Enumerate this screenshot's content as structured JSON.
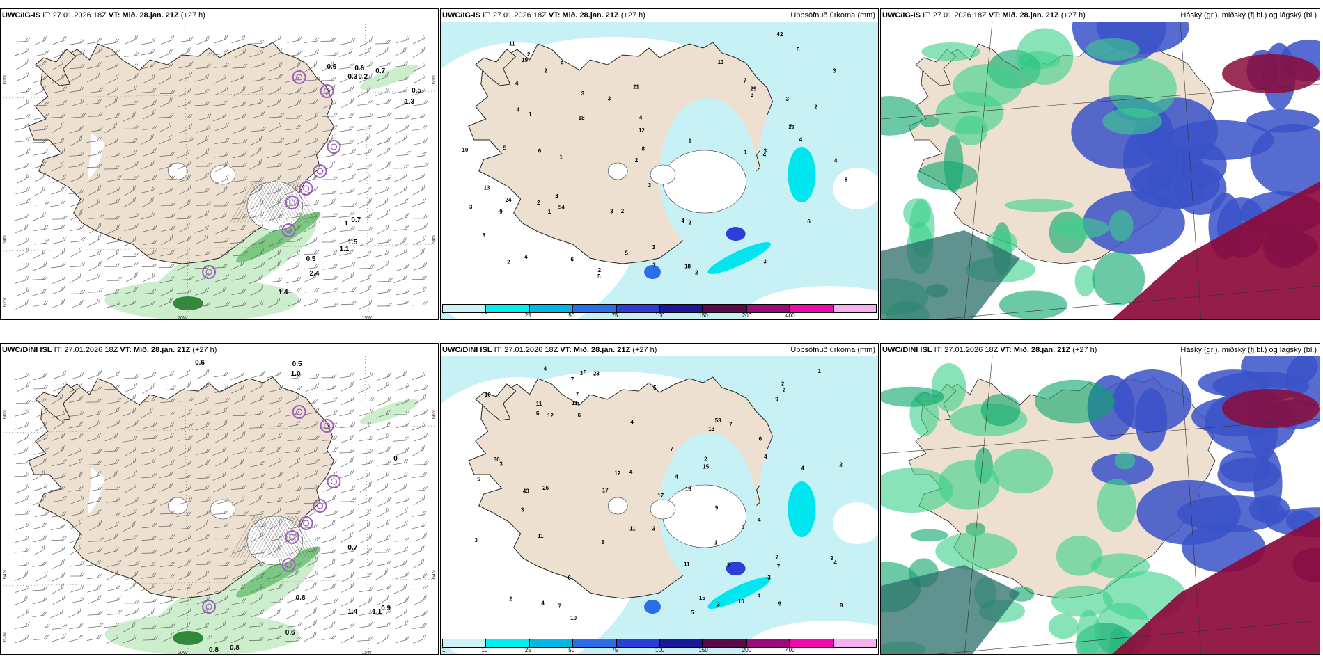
{
  "colors": {
    "land": "#ede0d0",
    "precip_light": "#c8f1f6",
    "precip_cyan": "#00e6ee",
    "green_light": "#cdeecd",
    "green_dark": "#2f8a3a",
    "purple": "#a05cc0",
    "cloud_high": "#0a8a5a",
    "cloud_mid": "#3a52c8",
    "cloud_low": "#8b0a3a"
  },
  "panels": [
    {
      "id": "igis-wind",
      "model": "UWC/IG-IS",
      "it_label": "IT: 27.01.2026 18Z",
      "vt_label": "VT: Mið. 28.jan. 21Z",
      "lead": "(+27 h)",
      "right_title": "",
      "coords": {
        "lat_top": "66N",
        "lat_mid": "64N",
        "lat_bot": "62N",
        "lon_w": "20W",
        "lon_e": "15W",
        "lat_top_r": "66N",
        "lat_mid_r": "64N"
      },
      "values": [
        "0.6",
        "0.6",
        "0.3",
        "0.2",
        "0.7",
        "0.5",
        "1.3",
        "1",
        "0.5",
        "2.4",
        "1.4",
        "1.1",
        "1.5",
        "0.7"
      ]
    },
    {
      "id": "igis-precip",
      "model": "UWC/IG-IS",
      "it_label": "IT: 27.01.2026 18Z",
      "vt_label": "VT: Mið. 28.jan. 21Z",
      "lead": "(+27 h)",
      "right_title": "Uppsöfnuð úrkoma (mm)",
      "values": [
        "1",
        "3",
        "3",
        "3",
        "3",
        "3",
        "2",
        "2",
        "2",
        "4",
        "1",
        "2",
        "2",
        "2",
        "2",
        "3",
        "2",
        "4",
        "5",
        "1",
        "4",
        "4",
        "4",
        "4",
        "3",
        "6",
        "5",
        "1",
        "5",
        "3",
        "7",
        "3",
        "5",
        "7",
        "24",
        "18",
        "19",
        "13",
        "3",
        "8",
        "13",
        "21",
        "8",
        "1",
        "9",
        "8",
        "2",
        "11",
        "10",
        "29",
        "54",
        "4",
        "3",
        "42",
        "4",
        "6",
        "4",
        "12",
        "3",
        "18",
        "9",
        "6",
        "21",
        "2"
      ]
    },
    {
      "id": "igis-cloud",
      "model": "UWC/IG-IS",
      "it_label": "IT: 27.01.2026 18Z",
      "vt_label": "VT: Mið. 28.jan. 21Z",
      "lead": "(+27 h)",
      "right_title": "Háský (gr.), miðský (fj.bl.) og lágský (bl.)"
    },
    {
      "id": "dini-wind",
      "model": "UWC/DINI ISL",
      "it_label": "IT: 27.01.2026 18Z",
      "vt_label": "VT: Mið. 28.jan. 21Z",
      "lead": "(+27 h)",
      "right_title": "",
      "coords": {
        "lat_top": "66N",
        "lat_mid": "64N",
        "lat_bot": "62N",
        "lon_w": "20W",
        "lon_e": "15W",
        "lat_top_r": "66N",
        "lat_mid_r": "64N"
      },
      "values": [
        "0.6",
        "0.5",
        "1.0",
        "0",
        "0.7",
        "0.8",
        "1.4",
        "1.1",
        "0.9",
        "0.6",
        "0.8",
        "0.8"
      ]
    },
    {
      "id": "dini-precip",
      "model": "UWC/DINI ISL",
      "it_label": "IT: 27.01.2026 18Z",
      "vt_label": "VT: Mið. 28.jan. 21Z",
      "lead": "(+27 h)",
      "right_title": "Uppsöfnuð úrkoma (mm)",
      "values": [
        "4",
        "4",
        "4",
        "3",
        "6",
        "1",
        "7",
        "10",
        "2",
        "3",
        "3",
        "3",
        "5",
        "4",
        "4",
        "2",
        "2",
        "3",
        "3",
        "4",
        "4",
        "5",
        "7",
        "7",
        "8",
        "7",
        "6",
        "23",
        "3",
        "7",
        "17",
        "53",
        "30",
        "4",
        "3",
        "8",
        "9",
        "9",
        "6",
        "15",
        "2",
        "12",
        "8",
        "9",
        "5",
        "11",
        "1",
        "12",
        "13",
        "26",
        "15",
        "4",
        "43",
        "2",
        "5",
        "3",
        "10",
        "16",
        "17",
        "6",
        "7",
        "11",
        "11",
        "10",
        "11",
        "9",
        "11",
        "4",
        "2"
      ]
    },
    {
      "id": "dini-cloud",
      "model": "UWC/DINI ISL",
      "it_label": "IT: 27.01.2026 18Z",
      "vt_label": "VT: Mið. 28.jan. 21Z",
      "lead": "(+27 h)",
      "right_title": "Háský (gr.), miðský (fj.bl.) og lágský (bl.)"
    }
  ],
  "colorbar": {
    "ticks": [
      "1",
      "10",
      "25",
      "50",
      "75",
      "100",
      "150",
      "200",
      "400"
    ],
    "colors": [
      "#c9f3f6",
      "#00eef0",
      "#00b8e6",
      "#2b6ee8",
      "#2a3ed8",
      "#18189a",
      "#5a0a4a",
      "#9a0a7a",
      "#f00ab0",
      "#f6b0ee"
    ]
  }
}
